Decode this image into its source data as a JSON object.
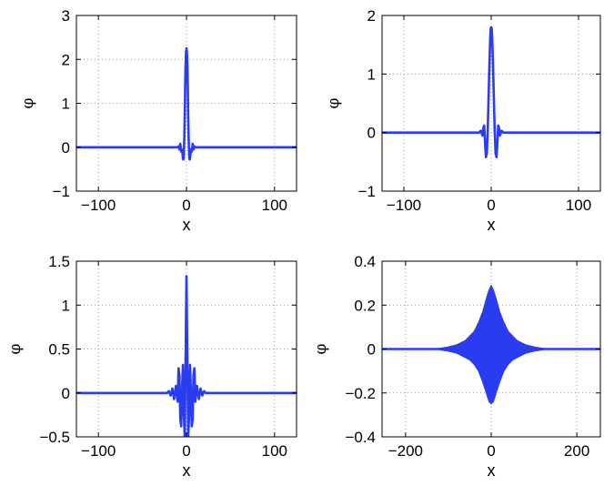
{
  "chart_data": [
    {
      "type": "line",
      "xlabel": "x",
      "ylabel": "φ",
      "xlim": [
        -125,
        125
      ],
      "ylim": [
        -1,
        3
      ],
      "xticks": [
        -100,
        0,
        100
      ],
      "xtick_labels": [
        "−100",
        "0",
        "100"
      ],
      "yticks": [
        -1,
        0,
        1,
        2,
        3
      ],
      "ytick_labels": [
        "−1",
        "0",
        "1",
        "2",
        "3"
      ],
      "grid": "dotted",
      "color": "#2a3cf0",
      "series": [
        {
          "x": [
            -125,
            -30,
            -10,
            -9,
            -8,
            -7,
            -6,
            -5,
            -4,
            -3.5,
            -3,
            -2.5,
            -2,
            -1.5,
            -1,
            -0.5,
            0,
            0.5,
            1,
            1.5,
            2,
            2.5,
            3,
            3.5,
            4,
            5,
            6,
            7,
            8,
            9,
            10,
            30,
            125
          ],
          "y": [
            0,
            0,
            0,
            0.02,
            -0.05,
            0.08,
            -0.1,
            -0.05,
            -0.26,
            -0.28,
            -0.15,
            0.2,
            0.7,
            1.3,
            1.85,
            2.15,
            2.25,
            2.15,
            1.85,
            1.3,
            0.7,
            0.2,
            -0.15,
            -0.28,
            -0.26,
            -0.05,
            -0.1,
            0.08,
            -0.05,
            0.02,
            0,
            0,
            0
          ]
        }
      ]
    },
    {
      "type": "line",
      "xlabel": "x",
      "ylabel": "φ",
      "xlim": [
        -125,
        125
      ],
      "ylim": [
        -1,
        2
      ],
      "xticks": [
        -100,
        0,
        100
      ],
      "xtick_labels": [
        "−100",
        "0",
        "100"
      ],
      "yticks": [
        -1,
        0,
        1,
        2
      ],
      "ytick_labels": [
        "−1",
        "0",
        "1",
        "2"
      ],
      "grid": "dotted",
      "color": "#2a3cf0",
      "series": [
        {
          "x": [
            -125,
            -30,
            -14,
            -12,
            -10,
            -9,
            -8,
            -7,
            -6,
            -5,
            -4,
            -3,
            -2,
            -1,
            -0.5,
            0,
            0.5,
            1,
            2,
            3,
            4,
            5,
            6,
            7,
            8,
            9,
            10,
            12,
            14,
            30,
            125
          ],
          "y": [
            0,
            0,
            0,
            0.03,
            -0.05,
            0.08,
            0.12,
            -0.2,
            -0.42,
            -0.35,
            0.05,
            0.6,
            1.2,
            1.65,
            1.78,
            1.8,
            1.78,
            1.65,
            1.2,
            0.6,
            0.05,
            -0.35,
            -0.42,
            -0.2,
            0.12,
            0.08,
            -0.05,
            0.03,
            0,
            0,
            0
          ]
        }
      ]
    },
    {
      "type": "line",
      "xlabel": "x",
      "ylabel": "φ",
      "xlim": [
        -125,
        125
      ],
      "ylim": [
        -0.5,
        1.5
      ],
      "xticks": [
        -100,
        0,
        100
      ],
      "xtick_labels": [
        "−100",
        "0",
        "100"
      ],
      "yticks": [
        -0.5,
        0,
        0.5,
        1,
        1.5
      ],
      "ytick_labels": [
        "−0.5",
        "0",
        "0.5",
        "1",
        "1.5"
      ],
      "grid": "dotted",
      "color": "#2a3cf0",
      "series": [
        {
          "x": [
            -125,
            -35,
            -22,
            -20,
            -18,
            -16,
            -14,
            -12,
            -10,
            -9,
            -8,
            -7,
            -6,
            -5,
            -4,
            -3,
            -2,
            -1,
            0,
            1,
            2,
            3,
            4,
            5,
            6,
            7,
            8,
            9,
            10,
            12,
            14,
            16,
            18,
            20,
            22,
            35,
            125
          ],
          "y": [
            0,
            0,
            0,
            0.02,
            -0.03,
            0.05,
            -0.07,
            0.08,
            -0.1,
            0.28,
            0.2,
            -0.3,
            -0.38,
            0.05,
            0.32,
            -0.25,
            -0.5,
            0.35,
            1.33,
            0.35,
            -0.5,
            -0.25,
            0.32,
            0.05,
            -0.38,
            -0.3,
            0.2,
            0.28,
            -0.1,
            0.08,
            -0.07,
            0.05,
            -0.03,
            0.02,
            0,
            0,
            0
          ]
        }
      ]
    },
    {
      "type": "line",
      "xlabel": "x",
      "ylabel": "φ",
      "xlim": [
        -255,
        255
      ],
      "ylim": [
        -0.4,
        0.4
      ],
      "xticks": [
        -200,
        0,
        200
      ],
      "xtick_labels": [
        "−200",
        "0",
        "200"
      ],
      "yticks": [
        -0.4,
        -0.2,
        0,
        0.2,
        0.4
      ],
      "ytick_labels": [
        "−0.4",
        "−0.2",
        "0",
        "0.2",
        "0.4"
      ],
      "grid": "dotted",
      "color": "#2a3cf0",
      "series": [
        {
          "x": [
            -255,
            -130,
            -100,
            -80,
            -60,
            -50,
            -40,
            -30,
            -20,
            -10,
            -5,
            0,
            5,
            10,
            20,
            30,
            40,
            50,
            60,
            80,
            100,
            130,
            255
          ],
          "y_upper": [
            0,
            0,
            0.01,
            0.02,
            0.04,
            0.06,
            0.08,
            0.12,
            0.17,
            0.24,
            0.27,
            0.29,
            0.27,
            0.24,
            0.17,
            0.12,
            0.08,
            0.06,
            0.04,
            0.02,
            0.01,
            0,
            0
          ],
          "y_lower": [
            0,
            0,
            -0.01,
            -0.02,
            -0.04,
            -0.05,
            -0.07,
            -0.1,
            -0.15,
            -0.21,
            -0.24,
            -0.25,
            -0.24,
            -0.21,
            -0.15,
            -0.1,
            -0.07,
            -0.05,
            -0.04,
            -0.02,
            -0.01,
            0,
            0
          ]
        }
      ]
    }
  ]
}
